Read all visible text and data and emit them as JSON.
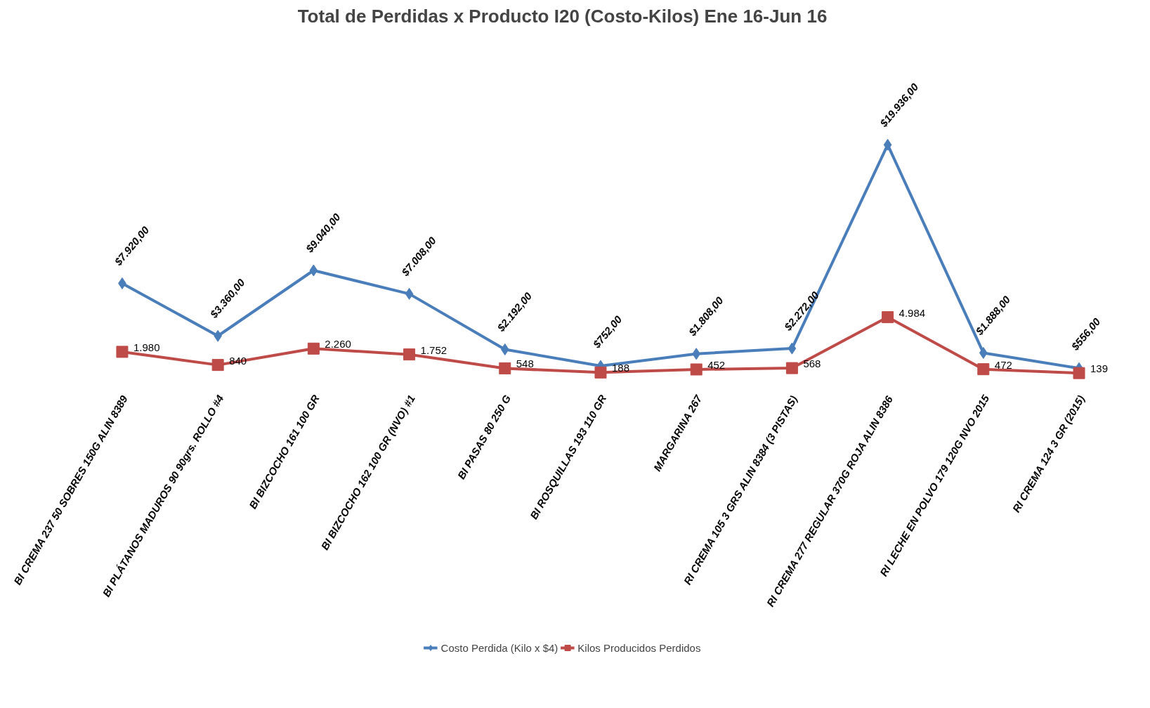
{
  "chart_data": {
    "type": "line",
    "title": "Total de Perdidas x Producto I20 (Costo-Kilos) Ene 16-Jun 16",
    "categories": [
      "BI CREMA 237 50 SOBRES 150G ALIN 8389",
      "BI PLÁTANOS MADUROS 90 90grs. ROLLO #4",
      "BI BIZCOCHO 161 100 GR",
      "BI BIZCOCHO 162 100 GR (NVO) #1",
      "BI PASAS 80 250 G",
      "BI ROSQUILLAS 193 110 GR",
      "MARGARINA 267",
      "RI CREMA 105 3 GRS ALIN 8384 (3 PISTAS)",
      "RI CREMA 277 REGULAR 370G ROJA ALIN 8386",
      "RI LECHE EN POLVO 179 120G NVO 2015",
      "RI CREMA 124 3 GR (2015)"
    ],
    "series": [
      {
        "name": "Costo Perdida (Kilo x $4)",
        "color": "#4a7ebb",
        "marker": "diamond",
        "values": [
          7920,
          3360,
          9040,
          7008,
          2192,
          752,
          1808,
          2272,
          19936,
          1888,
          556
        ],
        "value_labels": [
          "$7.920,00",
          "$3.360,00",
          "$9.040,00",
          "$7.008,00",
          "$2.192,00",
          "$752,00",
          "$1.808,00",
          "$2.272,00",
          "$19.936,00",
          "$1.888,00",
          "$556,00"
        ]
      },
      {
        "name": "Kilos Producidos Perdidos",
        "color": "#be4b48",
        "marker": "square",
        "values": [
          1980,
          840,
          2260,
          1752,
          548,
          188,
          452,
          568,
          4984,
          472,
          139
        ],
        "value_labels": [
          "1.980",
          "840",
          "2.260",
          "1.752",
          "548",
          "188",
          "452",
          "568",
          "4.984",
          "472",
          "139"
        ]
      }
    ],
    "legend": "bottom",
    "grid": false
  }
}
